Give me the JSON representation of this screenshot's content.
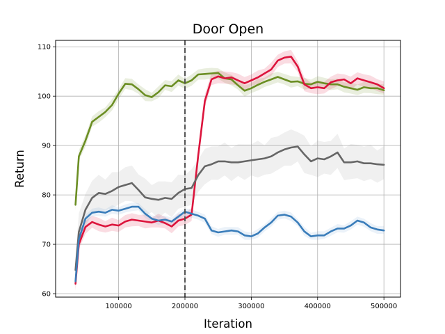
{
  "chart_data": {
    "type": "line",
    "title": "Door Open",
    "xlabel": "Iteration",
    "ylabel": "Return",
    "xlim": [
      5000,
      525000
    ],
    "ylim": [
      59.3,
      111.3
    ],
    "xticks": [
      100000,
      200000,
      300000,
      400000,
      500000
    ],
    "yticks": [
      60,
      70,
      80,
      90,
      100,
      110
    ],
    "xtick_labels": [
      "100000",
      "200000",
      "300000",
      "400000",
      "500000"
    ],
    "ytick_labels": [
      "60",
      "70",
      "80",
      "90",
      "100",
      "110"
    ],
    "grid": true,
    "legend": "none",
    "vline": {
      "x": 200000,
      "style": "dashed",
      "color": "#555555"
    },
    "series": [
      {
        "color": "#6b8e23",
        "band_color": "#6b8e23",
        "x": [
          35000,
          40000,
          50000,
          60000,
          70000,
          80000,
          90000,
          100000,
          110000,
          120000,
          130000,
          140000,
          150000,
          160000,
          170000,
          180000,
          190000,
          200000,
          210000,
          220000,
          230000,
          240000,
          250000,
          260000,
          270000,
          280000,
          290000,
          300000,
          310000,
          320000,
          330000,
          340000,
          350000,
          360000,
          370000,
          380000,
          390000,
          400000,
          410000,
          420000,
          430000,
          440000,
          450000,
          460000,
          470000,
          480000,
          490000,
          500000
        ],
        "y": [
          78,
          87.8,
          91,
          94.8,
          95.8,
          96.8,
          98.2,
          100.5,
          102.5,
          102.4,
          101.4,
          100.2,
          99.8,
          100.8,
          102.2,
          102,
          103.2,
          102.6,
          103.2,
          104.4,
          104.5,
          104.6,
          104.7,
          103.6,
          103.4,
          102.2,
          101.1,
          101.6,
          102.3,
          102.9,
          103.4,
          103.9,
          103.4,
          102.9,
          103.0,
          102.5,
          102.4,
          102.9,
          102.6,
          102.4,
          102.4,
          101.9,
          101.6,
          101.3,
          101.8,
          101.6,
          101.6,
          101.2
        ],
        "spread": 1.2
      },
      {
        "color": "#dc143c",
        "band_color": "#dc143c",
        "x": [
          35000,
          40000,
          50000,
          60000,
          70000,
          80000,
          90000,
          100000,
          110000,
          120000,
          130000,
          140000,
          150000,
          160000,
          170000,
          180000,
          190000,
          200000,
          210000,
          220000,
          230000,
          240000,
          250000,
          260000,
          270000,
          280000,
          290000,
          300000,
          310000,
          320000,
          330000,
          340000,
          350000,
          360000,
          370000,
          380000,
          390000,
          400000,
          410000,
          420000,
          430000,
          440000,
          450000,
          460000,
          470000,
          480000,
          490000,
          500000
        ],
        "y": [
          62,
          70,
          73.5,
          74.5,
          74.0,
          73.6,
          74.0,
          73.8,
          74.6,
          75.0,
          74.8,
          74.6,
          74.4,
          74.8,
          74.3,
          73.6,
          74.8,
          75.2,
          76,
          88,
          99,
          103.4,
          104.0,
          103.6,
          103.8,
          103.2,
          102.6,
          103.2,
          103.8,
          104.6,
          105.4,
          107.2,
          107.8,
          108.0,
          106.0,
          102.4,
          101.6,
          101.8,
          101.6,
          102.8,
          103.2,
          103.4,
          102.6,
          103.6,
          103.2,
          102.8,
          102.4,
          101.6
        ],
        "spread": 1.4
      },
      {
        "color": "#666666",
        "band_color": "#999999",
        "x": [
          35000,
          40000,
          50000,
          60000,
          70000,
          80000,
          90000,
          100000,
          110000,
          120000,
          130000,
          140000,
          150000,
          160000,
          170000,
          180000,
          190000,
          200000,
          210000,
          220000,
          230000,
          240000,
          250000,
          260000,
          270000,
          280000,
          290000,
          300000,
          310000,
          320000,
          330000,
          340000,
          350000,
          360000,
          370000,
          380000,
          390000,
          400000,
          410000,
          420000,
          430000,
          440000,
          450000,
          460000,
          470000,
          480000,
          490000,
          500000
        ],
        "y": [
          64.8,
          72.5,
          77.0,
          79.4,
          80.4,
          80.2,
          80.8,
          81.6,
          82.0,
          82.4,
          81.0,
          79.5,
          79.2,
          79.0,
          79.4,
          79.2,
          80.4,
          81.2,
          81.4,
          84.0,
          85.8,
          86.2,
          86.8,
          86.8,
          86.6,
          86.6,
          86.8,
          87.0,
          87.2,
          87.4,
          87.8,
          88.6,
          89.2,
          89.6,
          89.8,
          88.2,
          86.8,
          87.4,
          87.2,
          87.8,
          88.6,
          86.6,
          86.6,
          86.8,
          86.4,
          86.4,
          86.2,
          86.1
        ],
        "spread": 3.8
      },
      {
        "color": "#3a7dba",
        "band_color": "#7aa9d8",
        "x": [
          35000,
          40000,
          50000,
          60000,
          70000,
          80000,
          90000,
          100000,
          110000,
          120000,
          130000,
          140000,
          150000,
          160000,
          170000,
          180000,
          190000,
          200000,
          210000,
          220000,
          230000,
          240000,
          250000,
          260000,
          270000,
          280000,
          290000,
          300000,
          310000,
          320000,
          330000,
          340000,
          350000,
          360000,
          370000,
          380000,
          390000,
          400000,
          410000,
          420000,
          430000,
          440000,
          450000,
          460000,
          470000,
          480000,
          490000,
          500000
        ],
        "y": [
          62.5,
          71.0,
          75.2,
          76.4,
          76.6,
          76.4,
          77.0,
          76.8,
          77.2,
          77.6,
          77.6,
          76.2,
          75.2,
          74.8,
          75.0,
          74.6,
          75.6,
          76.6,
          76.2,
          75.8,
          75.2,
          72.8,
          72.4,
          72.6,
          72.8,
          72.6,
          71.8,
          71.6,
          72.2,
          73.4,
          74.4,
          75.8,
          76.0,
          75.6,
          74.4,
          72.6,
          71.6,
          71.8,
          71.8,
          72.6,
          73.2,
          73.2,
          73.8,
          74.8,
          74.4,
          73.4,
          73.0,
          72.8
        ],
        "spread": 0.9
      }
    ]
  }
}
